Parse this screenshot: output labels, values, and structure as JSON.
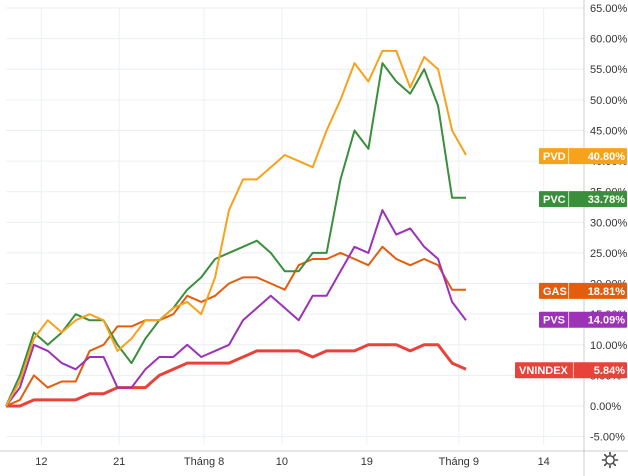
{
  "chart_data": {
    "type": "line",
    "title": "",
    "xlabel": "",
    "ylabel": "",
    "ylim": [
      -6.5,
      65.5
    ],
    "y_ticks": [
      65,
      60,
      55,
      50,
      45,
      40,
      35,
      30,
      25,
      20,
      15,
      10,
      5,
      0,
      -5
    ],
    "y_tick_labels": [
      "65.00%",
      "60.00%",
      "55.00%",
      "50.00%",
      "45.00%",
      "40.00%",
      "35.00%",
      "30.00%",
      "25.00%",
      "20.00%",
      "15.00%",
      "10.00%",
      "5.00%",
      "0.00%",
      "-5.00%"
    ],
    "x_range": [
      0,
      80
    ],
    "x_ticks": [
      {
        "x": 5,
        "label": "12"
      },
      {
        "x": 16,
        "label": "21"
      },
      {
        "x": 28,
        "label": "Tháng 8"
      },
      {
        "x": 39,
        "label": "10"
      },
      {
        "x": 51,
        "label": "19"
      },
      {
        "x": 64,
        "label": "Tháng 9"
      },
      {
        "x": 76,
        "label": "14"
      }
    ],
    "grid": true,
    "legend": "right",
    "series": [
      {
        "name": "PVD",
        "color": "#f7a21b",
        "last_label": "40.80%",
        "values": [
          0,
          4,
          11,
          14,
          12,
          14,
          15,
          14,
          9,
          11,
          14,
          14,
          16,
          17,
          15,
          21,
          32,
          37,
          37,
          39,
          41,
          40,
          39,
          45,
          50,
          56,
          53,
          58,
          58,
          52,
          57,
          55,
          45,
          41
        ]
      },
      {
        "name": "PVC",
        "color": "#3a8f3c",
        "last_label": "33.78%",
        "values": [
          0,
          5,
          12,
          10,
          12,
          15,
          14,
          14,
          10,
          7,
          11,
          14,
          16,
          19,
          21,
          24,
          25,
          26,
          27,
          25,
          22,
          22,
          25,
          25,
          37,
          45,
          42,
          56,
          53,
          51,
          55,
          49,
          34,
          34
        ]
      },
      {
        "name": "GAS",
        "color": "#e35d0e",
        "last_label": "18.81%",
        "values": [
          0,
          1,
          5,
          3,
          4,
          4,
          9,
          10,
          13,
          13,
          14,
          14,
          15,
          18,
          17,
          18,
          20,
          21,
          21,
          20,
          19,
          23,
          24,
          24,
          25,
          24,
          23,
          26,
          24,
          23,
          24,
          23,
          19,
          19
        ]
      },
      {
        "name": "PVS",
        "color": "#9b32b7",
        "last_label": "14.09%",
        "values": [
          0,
          3,
          10,
          9,
          7,
          6,
          8,
          8,
          3,
          3,
          6,
          8,
          8,
          10,
          8,
          9,
          10,
          14,
          16,
          18,
          16,
          14,
          18,
          18,
          22,
          26,
          25,
          32,
          28,
          29,
          26,
          24,
          17,
          14
        ]
      },
      {
        "name": "VNINDEX",
        "color": "#e8423a",
        "last_label": "5.84%",
        "values": [
          0,
          0,
          1,
          1,
          1,
          1,
          2,
          2,
          3,
          3,
          3,
          5,
          6,
          7,
          7,
          7,
          7,
          8,
          9,
          9,
          9,
          9,
          8,
          9,
          9,
          9,
          10,
          10,
          10,
          9,
          10,
          10,
          7,
          6
        ]
      }
    ]
  },
  "settings_icon": "gear-icon"
}
